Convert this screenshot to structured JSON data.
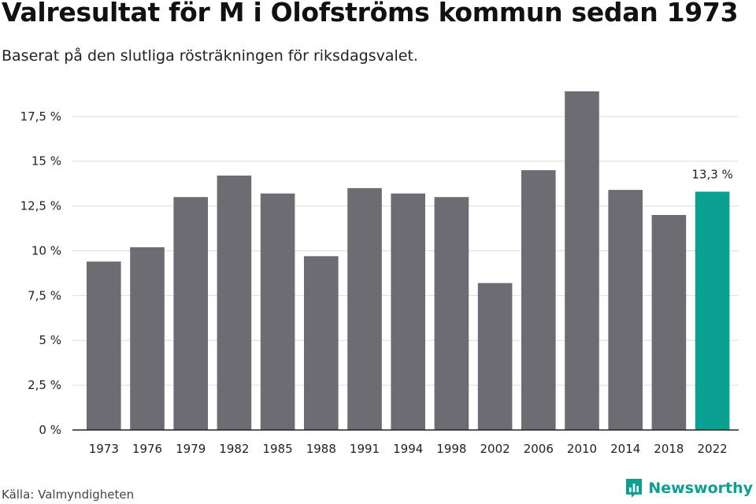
{
  "page": {
    "title": "Valresultat för M i Olofströms kommun sedan 1973",
    "subtitle": "Baserat på den slutliga rösträkningen för riksdagsvalet.",
    "source": "Källa: Valmyndigheten",
    "brand": "Newsworthy"
  },
  "colors": {
    "bar": "#6d6c72",
    "highlight": "#0aa193",
    "grid": "#dcdcdc",
    "axis": "#222222"
  },
  "icons": {
    "brand": "newsworthy-logo-icon"
  },
  "chart_data": {
    "type": "bar",
    "title": "Valresultat för M i Olofströms kommun sedan 1973",
    "subtitle": "Baserat på den slutliga rösträkningen för riksdagsvalet.",
    "xlabel": "",
    "ylabel": "",
    "categories": [
      "1973",
      "1976",
      "1979",
      "1982",
      "1985",
      "1988",
      "1991",
      "1994",
      "1998",
      "2002",
      "2006",
      "2010",
      "2014",
      "2018",
      "2022"
    ],
    "values": [
      9.4,
      10.2,
      13.0,
      14.2,
      13.2,
      9.7,
      13.5,
      13.2,
      13.0,
      8.2,
      14.5,
      18.9,
      13.4,
      12.0,
      13.3
    ],
    "ylim": [
      0,
      18.9
    ],
    "yticks": [
      0,
      2.5,
      5,
      7.5,
      10,
      12.5,
      15,
      17.5
    ],
    "ytick_labels": [
      "0 %",
      "2,5 %",
      "5 %",
      "7,5 %",
      "10 %",
      "12,5 %",
      "15 %",
      "17,5 %"
    ],
    "highlight_category": "2022",
    "annotations": [
      {
        "category": "2022",
        "text": "13,3 %"
      }
    ],
    "grid": true,
    "legend": "none"
  }
}
